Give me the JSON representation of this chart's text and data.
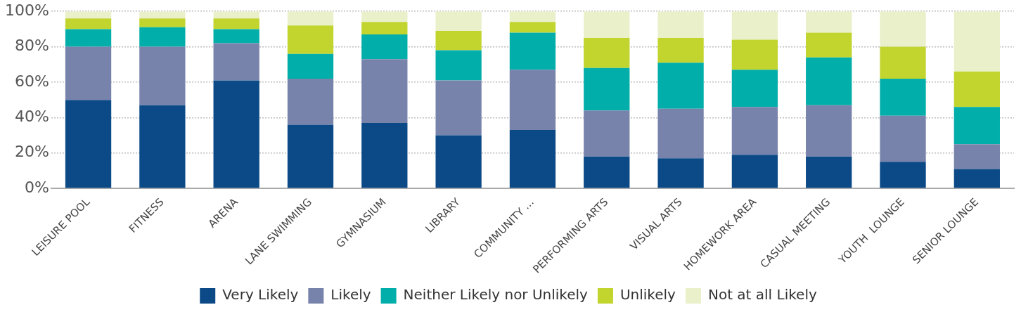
{
  "chart_data": {
    "type": "bar",
    "stacked": true,
    "categories": [
      "LEISURE POOL",
      "FITNESS",
      "ARENA",
      "LANE SWIMMING",
      "GYMNASIUM",
      "LIBRARY",
      "COMMUNITY …",
      "PERFORMING ARTS",
      "VISUAL ARTS",
      "HOMEWORK AREA",
      "CASUAL MEETING",
      "YOUTH  LOUNGE",
      "SENIOR LOUNGE"
    ],
    "series": [
      {
        "name": "Very Likely",
        "color": "#0b4a87",
        "values": [
          50,
          47,
          61,
          36,
          37,
          30,
          33,
          18,
          17,
          19,
          18,
          15,
          11
        ]
      },
      {
        "name": "Likely",
        "color": "#7883ab",
        "values": [
          30,
          33,
          21,
          26,
          36,
          31,
          34,
          26,
          28,
          27,
          29,
          26,
          14
        ]
      },
      {
        "name": "Neither Likely nor Unlikely",
        "color": "#02aeaa",
        "values": [
          10,
          11,
          8,
          14,
          14,
          17,
          21,
          24,
          26,
          21,
          27,
          21,
          21
        ]
      },
      {
        "name": "Unlikely",
        "color": "#c1d52e",
        "values": [
          6,
          5,
          6,
          16,
          7,
          11,
          6,
          17,
          14,
          17,
          14,
          18,
          20
        ]
      },
      {
        "name": "Not at all Likely",
        "color": "#eaf0c9",
        "values": [
          4,
          4,
          4,
          8,
          6,
          11,
          6,
          15,
          15,
          16,
          12,
          20,
          34
        ]
      }
    ],
    "ylim": [
      0,
      100
    ],
    "yticks": [
      {
        "value": 0,
        "label": "0%"
      },
      {
        "value": 20,
        "label": "20%"
      },
      {
        "value": 40,
        "label": "40%"
      },
      {
        "value": 60,
        "label": "60%"
      },
      {
        "value": 80,
        "label": "80%"
      },
      {
        "value": 100,
        "label": "100%"
      }
    ],
    "grid": "y",
    "legend": "bottom"
  }
}
